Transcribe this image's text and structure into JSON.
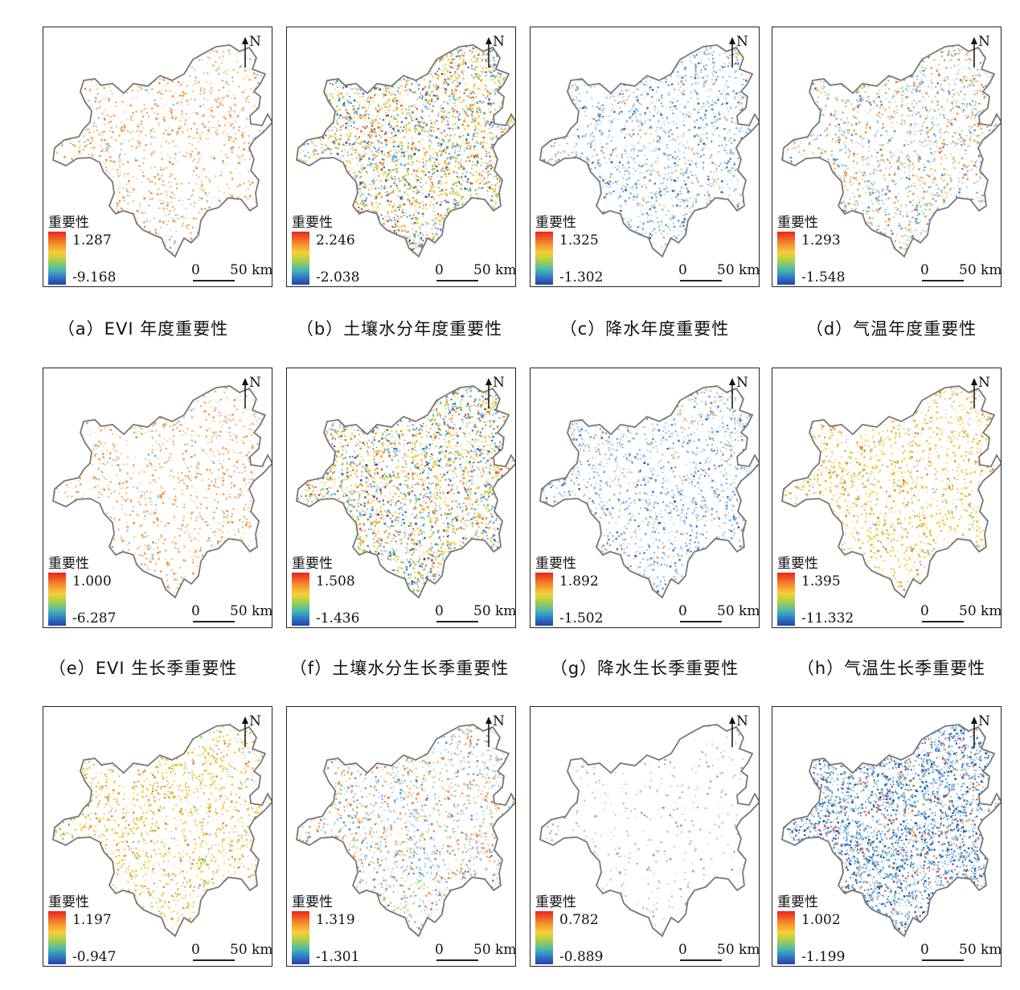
{
  "legend_title": "重要性",
  "north_label": "N",
  "scale": {
    "zero": "0",
    "distance": "50 km"
  },
  "ramp_colors": [
    "#e8261b",
    "#f58a2c",
    "#f7cf3a",
    "#a8cf48",
    "#49b8b0",
    "#2f79c4",
    "#2541a8"
  ],
  "boundary_color": "#777777",
  "panels": [
    {
      "max": "1.287",
      "min": "-9.168",
      "caption": "（a）EVI 年度重要性",
      "dominant": "orange-sparse"
    },
    {
      "max": "2.246",
      "min": "-2.038",
      "caption": "（b）土壤水分年度重要性",
      "dominant": "mixed-dense"
    },
    {
      "max": "1.325",
      "min": "-1.302",
      "caption": "（c）降水年度重要性",
      "dominant": "blue-medium"
    },
    {
      "max": "1.293",
      "min": "-1.548",
      "caption": "（d）气温年度重要性",
      "dominant": "mixed-medium"
    },
    {
      "max": "1.000",
      "min": "-6.287",
      "caption": "（e）EVI 生长季重要性",
      "dominant": "orange-sparse"
    },
    {
      "max": "1.508",
      "min": "-1.436",
      "caption": "（f）土壤水分生长季重要性",
      "dominant": "mixed-dense"
    },
    {
      "max": "1.892",
      "min": "-1.502",
      "caption": "（g）降水生长季重要性",
      "dominant": "blue-medium"
    },
    {
      "max": "1.395",
      "min": "-11.332",
      "caption": "（h）气温生长季重要性",
      "dominant": "yellow-medium"
    },
    {
      "max": "1.197",
      "min": "-0.947",
      "caption": "",
      "dominant": "yellow-medium"
    },
    {
      "max": "1.319",
      "min": "-1.301",
      "caption": "",
      "dominant": "mixed-medium"
    },
    {
      "max": "0.782",
      "min": "-0.889",
      "caption": "",
      "dominant": "very-sparse"
    },
    {
      "max": "1.002",
      "min": "-1.199",
      "caption": "",
      "dominant": "blue-dense"
    }
  ]
}
